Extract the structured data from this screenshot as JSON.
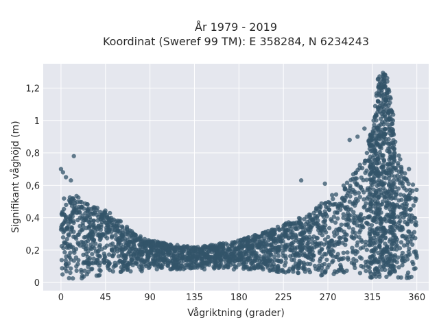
{
  "chart_data": {
    "type": "scatter",
    "title": "År 1979 - 2019",
    "subtitle": "Koordinat (Sweref 99 TM): E 358284, N 6234243",
    "xlabel": "Vågriktning (grader)",
    "ylabel": "Signifikant våghöjd (m)",
    "xlim": [
      -18,
      372
    ],
    "ylim": [
      -0.05,
      1.35
    ],
    "x_ticks": [
      0,
      45,
      90,
      135,
      180,
      225,
      270,
      315,
      360
    ],
    "x_tick_labels": [
      "0",
      "45",
      "90",
      "135",
      "180",
      "225",
      "270",
      "315",
      "360"
    ],
    "y_ticks": [
      0,
      0.2,
      0.4,
      0.6,
      0.8,
      1,
      1.2
    ],
    "y_tick_labels": [
      "0",
      "0,2",
      "0,4",
      "0,6",
      "0,8",
      "1",
      "1,2"
    ],
    "grid": true,
    "marker_color": "#33546a",
    "background_color": "#e5e7ee",
    "envelope": {
      "direction": [
        0,
        10,
        20,
        30,
        45,
        60,
        75,
        90,
        110,
        135,
        160,
        180,
        200,
        225,
        250,
        270,
        290,
        305,
        315,
        320,
        325,
        330,
        335,
        340,
        345,
        350,
        360
      ],
      "upper": [
        0.58,
        0.56,
        0.52,
        0.48,
        0.45,
        0.38,
        0.3,
        0.26,
        0.24,
        0.22,
        0.24,
        0.26,
        0.3,
        0.36,
        0.42,
        0.52,
        0.62,
        0.76,
        0.95,
        1.25,
        1.3,
        1.28,
        1.1,
        0.85,
        0.72,
        0.65,
        0.6
      ],
      "lower": [
        0.03,
        0.02,
        0.02,
        0.03,
        0.05,
        0.06,
        0.06,
        0.08,
        0.08,
        0.08,
        0.08,
        0.08,
        0.08,
        0.06,
        0.05,
        0.04,
        0.03,
        0.03,
        0.03,
        0.03,
        0.03,
        0.03,
        0.03,
        0.02,
        0.02,
        0.02,
        0.03
      ]
    },
    "outliers": [
      {
        "x": 0,
        "y": 0.7
      },
      {
        "x": 2,
        "y": 0.68
      },
      {
        "x": 13,
        "y": 0.78
      },
      {
        "x": 5,
        "y": 0.65
      },
      {
        "x": 10,
        "y": 0.63
      },
      {
        "x": 267,
        "y": 0.61
      },
      {
        "x": 243,
        "y": 0.63
      },
      {
        "x": 292,
        "y": 0.88
      },
      {
        "x": 300,
        "y": 0.9
      },
      {
        "x": 307,
        "y": 0.95
      },
      {
        "x": 352,
        "y": 0.7
      }
    ]
  }
}
